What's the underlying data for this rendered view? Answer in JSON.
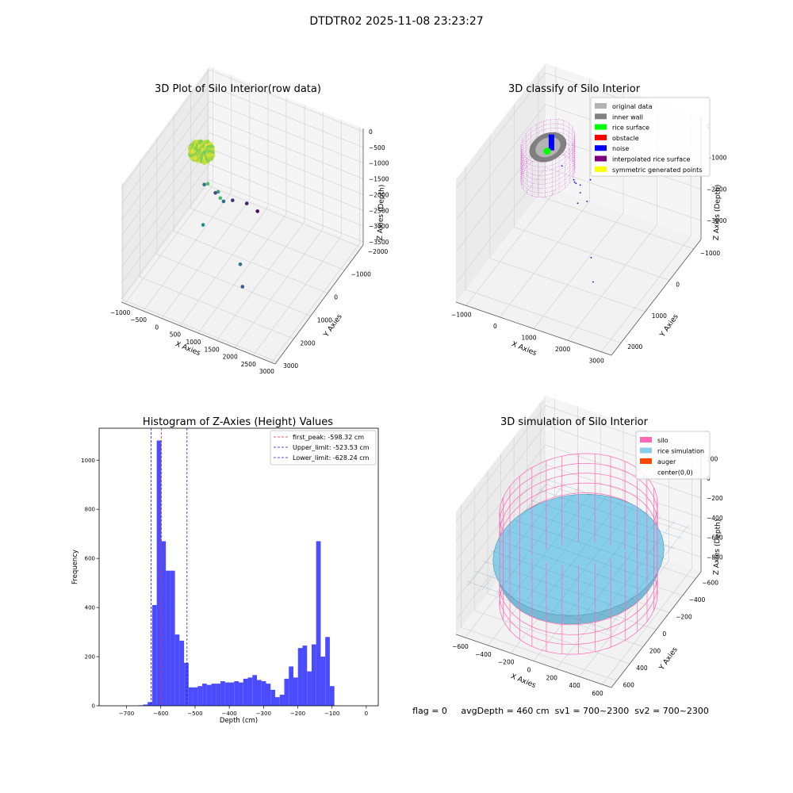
{
  "suptitle": "DTDTR02 2025-11-08 23:23:27",
  "status_text": "flag = 0     avgDepth = 460 cm  sv1 = 700~2300  sv2 = 700~2300",
  "colors": {
    "histogram_bars": "#4b4bff",
    "first_peak_line": "#e32b2b",
    "limit_lines": "#1a1acc",
    "silo": "#ff69b4",
    "rice_simulation": "#87ceeb",
    "auger": "#ff4500",
    "original_data": "#b3b3b3",
    "inner_wall": "#808080",
    "rice_surface": "#00ff00",
    "obstacle": "#ff0000",
    "noise": "#0000ff",
    "interpolated_rice_surface": "#800080",
    "symmetric_generated_points": "#ffff00"
  },
  "chart_data": [
    {
      "id": "raw",
      "type": "scatter",
      "projection": "3d",
      "title": "3D Plot of Silo Interior(row data)",
      "xlabel": "X Axies",
      "ylabel": "Y Axies",
      "zlabel": "Z Axies (Depth)",
      "xticks": [
        "−1000",
        "−500",
        "0",
        "500",
        "1000",
        "1500",
        "2000",
        "2500",
        "3000"
      ],
      "yticks": [
        "−2000",
        "−1000",
        "0",
        "1000",
        "2000",
        "3000"
      ],
      "zticks": [
        "0",
        "−500",
        "−1000",
        "−1500",
        "−2000",
        "−2500",
        "−3000",
        "−3500"
      ],
      "xlim": [
        -1100,
        3100
      ],
      "ylim": [
        -2100,
        3100
      ],
      "zlim": [
        -3600,
        100
      ],
      "grid": true,
      "colormap": "viridis",
      "cluster": {
        "center": [
          -280,
          150
        ],
        "radius": 280,
        "z_range": [
          -700,
          -450
        ]
      },
      "points": [
        {
          "x": -200,
          "y": 330,
          "z": -600
        },
        {
          "x": -330,
          "y": 180,
          "z": -550
        },
        {
          "x": -150,
          "y": 100,
          "z": -520
        },
        {
          "x": -260,
          "y": 10,
          "z": -700
        },
        {
          "x": 150,
          "y": 700,
          "z": -1000
        },
        {
          "x": 540,
          "y": 800,
          "z": -1200
        },
        {
          "x": 250,
          "y": 300,
          "z": -1500
        },
        {
          "x": 300,
          "y": 1300,
          "z": -1800
        },
        {
          "x": 1500,
          "y": 1700,
          "z": -2200
        },
        {
          "x": 1700,
          "y": 2000,
          "z": -2600
        },
        {
          "x": -500,
          "y": -500,
          "z": -2200
        },
        {
          "x": 120,
          "y": -300,
          "z": -2300
        },
        {
          "x": -380,
          "y": -900,
          "z": -2700
        },
        {
          "x": -50,
          "y": -1200,
          "z": -3000
        },
        {
          "x": 200,
          "y": -1500,
          "z": -3200
        },
        {
          "x": 400,
          "y": -1700,
          "z": -3500
        }
      ]
    },
    {
      "id": "classify",
      "type": "scatter",
      "projection": "3d",
      "title": "3D classify of Silo Interior",
      "xlabel": "X Axies",
      "ylabel": "Y Axies",
      "zlabel": "Z Axies (Depth)",
      "xticks": [
        "−1000",
        "0",
        "1000",
        "2000",
        "3000"
      ],
      "yticks": [
        "−1000",
        "0",
        "1000",
        "2000"
      ],
      "zticks": [
        "0",
        "−1000",
        "−2000",
        "−3000"
      ],
      "xlim": [
        -1300,
        3300
      ],
      "ylim": [
        -1300,
        2400
      ],
      "zlim": [
        -3600,
        300
      ],
      "grid": true,
      "legend_position": "top-right",
      "legend": [
        {
          "label": "original data",
          "color": "#b3b3b3"
        },
        {
          "label": "inner wall",
          "color": "#808080"
        },
        {
          "label": "rice surface",
          "color": "#00ff00"
        },
        {
          "label": "obstacle",
          "color": "#ff0000"
        },
        {
          "label": "noise",
          "color": "#0000ff"
        },
        {
          "label": "interpolated rice surface",
          "color": "#800080"
        },
        {
          "label": "symmetric generated points",
          "color": "#ffff00"
        }
      ],
      "silo": {
        "center": [
          -300,
          0
        ],
        "radius": 650,
        "z_range": [
          -1600,
          -500
        ]
      },
      "noise_points": [
        {
          "x": 900,
          "y": 600,
          "z": -700
        },
        {
          "x": 1300,
          "y": 1000,
          "z": -900
        },
        {
          "x": 800,
          "y": 200,
          "z": -1300
        },
        {
          "x": 2200,
          "y": 1700,
          "z": -1600
        },
        {
          "x": 2400,
          "y": 1900,
          "z": -2100
        },
        {
          "x": 600,
          "y": -500,
          "z": -1900
        },
        {
          "x": 100,
          "y": -600,
          "z": -2300
        },
        {
          "x": -600,
          "y": -1000,
          "z": -2400
        },
        {
          "x": -300,
          "y": -1100,
          "z": -2900
        },
        {
          "x": -200,
          "y": -1200,
          "z": -3300
        },
        {
          "x": 0,
          "y": -1200,
          "z": -3500
        }
      ]
    },
    {
      "id": "hist",
      "type": "bar",
      "title": "Histogram of Z-Axies (Height) Values",
      "xlabel": "Depth (cm)",
      "ylabel": "Frequency",
      "xlim": [
        -780,
        35
      ],
      "ylim": [
        0,
        1130
      ],
      "xticks": [
        "−700",
        "−600",
        "−500",
        "−400",
        "−300",
        "−200",
        "−100",
        "0"
      ],
      "yticks": [
        "0",
        "200",
        "400",
        "600",
        "800",
        "1000"
      ],
      "grid": false,
      "legend_position": "top-right",
      "bin_start": -665,
      "bin_width": 13.3,
      "values": [
        2,
        5,
        15,
        410,
        1080,
        670,
        550,
        550,
        290,
        265,
        175,
        75,
        75,
        80,
        90,
        85,
        90,
        90,
        100,
        95,
        95,
        100,
        95,
        110,
        115,
        125,
        105,
        100,
        90,
        65,
        35,
        45,
        110,
        160,
        115,
        235,
        245,
        140,
        250,
        670,
        200,
        280,
        80
      ],
      "lines": [
        {
          "label": "first_peak: -598.32 cm",
          "x": -598.32,
          "color": "#e32b2b"
        },
        {
          "label": "Upper_limit: -523.53 cm",
          "x": -523.53,
          "color": "#1a1acc"
        },
        {
          "label": "Lower_limit: -628.24 cm",
          "x": -628.24,
          "color": "#1a1acc"
        }
      ]
    },
    {
      "id": "sim",
      "type": "surface",
      "projection": "3d",
      "title": "3D simulation of Silo Interior",
      "xlabel": "X Axies",
      "ylabel": "Y Axies",
      "zlabel": "Z Axies (Depth)",
      "xticks": [
        "−600",
        "−400",
        "−200",
        "0",
        "200",
        "400",
        "600"
      ],
      "yticks": [
        "−600",
        "−400",
        "−200",
        "0",
        "200",
        "400",
        "600"
      ],
      "zticks": [
        "200",
        "0",
        "−200",
        "−400",
        "−600",
        "−800"
      ],
      "xlim": [
        -680,
        680
      ],
      "ylim": [
        -680,
        680
      ],
      "zlim": [
        -950,
        300
      ],
      "grid": true,
      "legend_position": "top-right",
      "legend": [
        {
          "label": "silo",
          "color": "#ff69b4"
        },
        {
          "label": "rice simulation",
          "color": "#87ceeb"
        },
        {
          "label": "auger",
          "color": "#ff4500"
        },
        {
          "label": "center(0,0)",
          "color": ""
        }
      ],
      "silo": {
        "radius": 600,
        "z_range": [
          -900,
          0
        ]
      },
      "rice_surface_depth": -460,
      "auger_depth": -600
    }
  ]
}
